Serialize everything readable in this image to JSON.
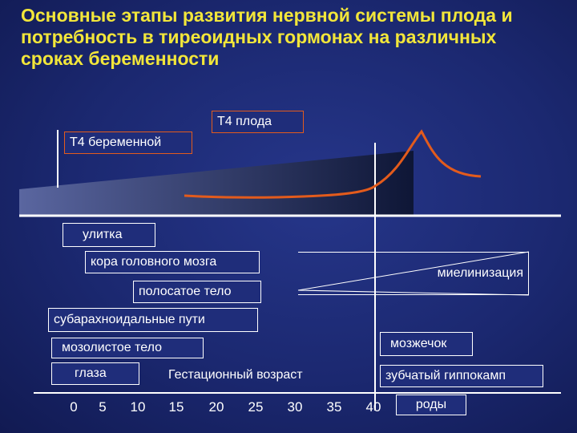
{
  "title": "Основные этапы развития нервной системы плода и потребность в тиреоидных гормонах на различных сроках беременности",
  "labels": {
    "t4_fetus": "Т4 плода",
    "t4_mother": "Т4 беременной",
    "cochlea": "улитка",
    "cortex": "кора головного мозга",
    "myelination": "миелинизация",
    "striatum": "полосатое тело",
    "subarachnoid": "субарахноидальные пути",
    "cerebellum": "мозжечок",
    "corpus_callosum": "мозолистое тело",
    "eyes": "глаза",
    "gestational_age": "Гестационный возраст",
    "dentate_hippocampus": "зубчатый гиппокамп",
    "birth": "роды"
  },
  "axis": {
    "ticks": [
      "0",
      "5",
      "10",
      "15",
      "20",
      "25",
      "30",
      "35",
      "40"
    ]
  },
  "colors": {
    "background": "#1c2a72",
    "title": "#f2e63a",
    "curve": "#e35b1c",
    "box_border": "#ffffff"
  }
}
